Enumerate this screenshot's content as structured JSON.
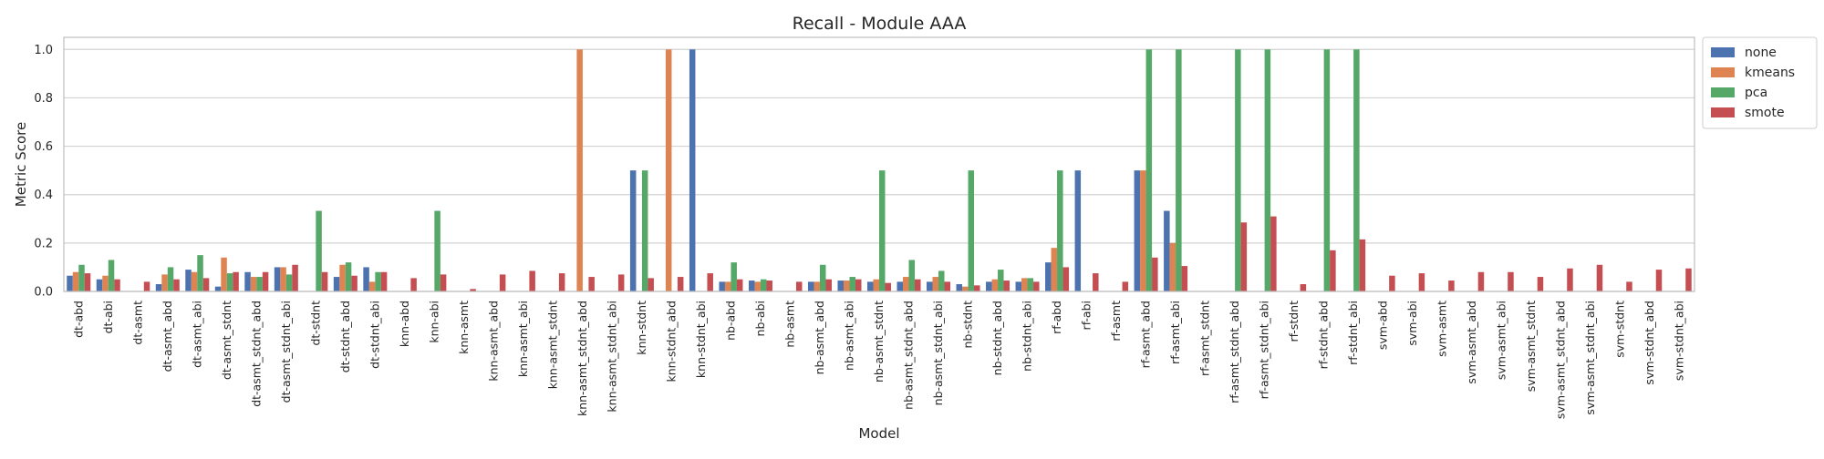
{
  "chart_data": {
    "type": "bar",
    "title": "Recall - Module AAA",
    "xlabel": "Model",
    "ylabel": "Metric Score",
    "ylim": [
      0,
      1.05
    ],
    "yticks": [
      "0.0",
      "0.2",
      "0.4",
      "0.6",
      "0.8",
      "1.0"
    ],
    "grid": true,
    "legend_position": "outside-top-right",
    "categories": [
      "dt-abd",
      "dt-abi",
      "dt-asmt",
      "dt-asmt_abd",
      "dt-asmt_abi",
      "dt-asmt_stdnt",
      "dt-asmt_stdnt_abd",
      "dt-asmt_stdnt_abi",
      "dt-stdnt",
      "dt-stdnt_abd",
      "dt-stdnt_abi",
      "knn-abd",
      "knn-abi",
      "knn-asmt",
      "knn-asmt_abd",
      "knn-asmt_abi",
      "knn-asmt_stdnt",
      "knn-asmt_stdnt_abd",
      "knn-asmt_stdnt_abi",
      "knn-stdnt",
      "knn-stdnt_abd",
      "knn-stdnt_abi",
      "nb-abd",
      "nb-abi",
      "nb-asmt",
      "nb-asmt_abd",
      "nb-asmt_abi",
      "nb-asmt_stdnt",
      "nb-asmt_stdnt_abd",
      "nb-asmt_stdnt_abi",
      "nb-stdnt",
      "nb-stdnt_abd",
      "nb-stdnt_abi",
      "rf-abd",
      "rf-abi",
      "rf-asmt",
      "rf-asmt_abd",
      "rf-asmt_abi",
      "rf-asmt_stdnt",
      "rf-asmt_stdnt_abd",
      "rf-asmt_stdnt_abi",
      "rf-stdnt",
      "rf-stdnt_abd",
      "rf-stdnt_abi",
      "svm-abd",
      "svm-abi",
      "svm-asmt",
      "svm-asmt_abd",
      "svm-asmt_abi",
      "svm-asmt_stdnt",
      "svm-asmt_stdnt_abd",
      "svm-asmt_stdnt_abi",
      "svm-stdnt",
      "svm-stdnt_abd",
      "svm-stdnt_abi"
    ],
    "series": [
      {
        "name": "none",
        "color": "#4c72b0",
        "values": [
          0.065,
          0.05,
          0,
          0.03,
          0.09,
          0.02,
          0.08,
          0.1,
          0,
          0.06,
          0.1,
          0,
          0,
          0,
          0,
          0,
          0,
          0,
          0,
          0.5,
          0,
          1.0,
          0.04,
          0.045,
          0,
          0.04,
          0.045,
          0.04,
          0.04,
          0.04,
          0.03,
          0.04,
          0.04,
          0.12,
          0.5,
          0,
          0.5,
          0.333,
          0,
          0,
          0,
          0,
          0,
          0,
          0,
          0,
          0,
          0,
          0,
          0,
          0,
          0,
          0,
          0,
          0
        ]
      },
      {
        "name": "kmeans",
        "color": "#dd8452",
        "values": [
          0.08,
          0.065,
          0,
          0.07,
          0.08,
          0.14,
          0.06,
          0.1,
          0,
          0.11,
          0.04,
          0,
          0,
          0,
          0,
          0,
          0,
          1.0,
          0,
          0,
          1.0,
          0,
          0.04,
          0.04,
          0,
          0.04,
          0.045,
          0.05,
          0.06,
          0.06,
          0.02,
          0.05,
          0.055,
          0.18,
          0,
          0,
          0.5,
          0.2,
          0,
          0,
          0,
          0,
          0,
          0,
          0,
          0,
          0,
          0,
          0,
          0,
          0,
          0,
          0,
          0,
          0
        ]
      },
      {
        "name": "pca",
        "color": "#55a868",
        "values": [
          0.11,
          0.13,
          0,
          0.1,
          0.15,
          0.075,
          0.06,
          0.07,
          0.333,
          0.12,
          0.08,
          0,
          0.333,
          0,
          0,
          0,
          0,
          0,
          0,
          0.5,
          0,
          0,
          0.12,
          0.05,
          0,
          0.11,
          0.06,
          0.5,
          0.13,
          0.085,
          0.5,
          0.09,
          0.055,
          0.5,
          0,
          0,
          1.0,
          1.0,
          0,
          1.0,
          1.0,
          0,
          1.0,
          1.0,
          0,
          0,
          0,
          0,
          0,
          0,
          0,
          0,
          0,
          0,
          0
        ]
      },
      {
        "name": "smote",
        "color": "#c44e52",
        "values": [
          0.075,
          0.05,
          0.04,
          0.05,
          0.055,
          0.08,
          0.08,
          0.11,
          0.08,
          0.065,
          0.08,
          0.055,
          0.07,
          0.01,
          0.07,
          0.085,
          0.075,
          0.06,
          0.07,
          0.055,
          0.06,
          0.075,
          0.05,
          0.045,
          0.04,
          0.05,
          0.05,
          0.035,
          0.05,
          0.04,
          0.025,
          0.045,
          0.04,
          0.1,
          0.075,
          0.04,
          0.14,
          0.105,
          0,
          0.285,
          0.31,
          0.03,
          0.17,
          0.215,
          0.065,
          0.075,
          0.045,
          0.08,
          0.08,
          0.06,
          0.095,
          0.11,
          0.04,
          0.09,
          0.095
        ]
      }
    ]
  }
}
